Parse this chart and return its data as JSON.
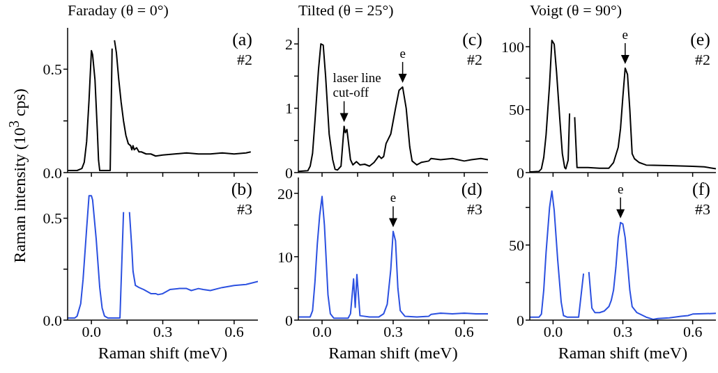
{
  "chart_data": [
    {
      "type": "line",
      "title": "Faraday (θ = 0°)",
      "ylabel": "Raman intensity (10$^{3}$ cps)",
      "tick_labels": "y",
      "xlim": [
        -0.1,
        0.7
      ],
      "xticks": [
        {
          "value": 0,
          "label": null
        },
        {
          "value": 0.15,
          "label": null
        },
        {
          "value": 0.3,
          "label": null
        },
        {
          "value": 0.45,
          "label": null
        },
        {
          "value": 0.6,
          "label": null
        }
      ],
      "ylim": [
        0,
        0.7
      ],
      "yticks": [
        {
          "value": 0,
          "label": "0.0"
        },
        {
          "value": 0.25,
          "label": null
        },
        {
          "value": 0.5,
          "label": "0.5"
        }
      ],
      "annotations": [
        "(a)",
        "#2"
      ],
      "series": [
        {
          "color": "#000000",
          "x": [
            -0.1,
            -0.06,
            -0.04,
            -0.03,
            -0.02,
            -0.01,
            0.0,
            0.005,
            0.015,
            0.025,
            0.03,
            0.035,
            0.079,
            0.087,
            0.092,
            0.097,
            0.105,
            0.115,
            0.125,
            0.135,
            0.145,
            0.155,
            0.165,
            0.17,
            0.175,
            0.18,
            0.19,
            0.2,
            0.21,
            0.23,
            0.25,
            0.27,
            0.3,
            0.35,
            0.4,
            0.45,
            0.5,
            0.55,
            0.6,
            0.65,
            0.67
          ],
          "values": [
            0.01,
            0.01,
            0.02,
            0.05,
            0.15,
            0.35,
            0.59,
            0.57,
            0.45,
            0.2,
            0.06,
            0.01,
            0.01,
            0.6,
            null,
            0.64,
            0.58,
            0.45,
            0.34,
            0.25,
            0.18,
            0.14,
            0.13,
            0.11,
            0.13,
            0.11,
            0.12,
            0.1,
            0.1,
            0.09,
            0.09,
            0.08,
            0.085,
            0.09,
            0.095,
            0.09,
            0.09,
            0.095,
            0.09,
            0.095,
            0.1
          ]
        }
      ]
    },
    {
      "type": "line",
      "title": "Tilted (θ = 25°)",
      "tick_labels": "y",
      "xlim": [
        -0.1,
        0.7
      ],
      "xticks": [
        {
          "value": 0,
          "label": null
        },
        {
          "value": 0.15,
          "label": null
        },
        {
          "value": 0.3,
          "label": null
        },
        {
          "value": 0.45,
          "label": null
        },
        {
          "value": 0.6,
          "label": null
        }
      ],
      "ylim": [
        0,
        2.25
      ],
      "yticks": [
        0,
        {
          "value": 0.5,
          "label": null
        },
        1,
        {
          "value": 1.5,
          "label": null
        },
        2
      ],
      "annotations": [
        "(c)",
        "#2",
        {
          "text": "laser line cut-off",
          "x": 0.093,
          "y": 0.72
        },
        {
          "text": "e",
          "x": 0.34,
          "y": 1.33
        }
      ],
      "series": [
        {
          "color": "#000000",
          "x": [
            -0.1,
            -0.06,
            -0.05,
            -0.04,
            -0.03,
            -0.015,
            -0.005,
            0.005,
            0.015,
            0.03,
            0.045,
            0.055,
            0.065,
            0.08,
            0.093,
            0.098,
            0.105,
            0.12,
            0.13,
            0.145,
            0.16,
            0.18,
            0.2,
            0.22,
            0.24,
            0.25,
            0.26,
            0.27,
            0.29,
            0.31,
            0.325,
            0.34,
            0.355,
            0.37,
            0.38,
            0.4,
            0.42,
            0.45,
            0.46,
            0.5,
            0.55,
            0.6,
            0.63,
            0.67,
            0.7
          ],
          "values": [
            0.02,
            0.03,
            0.1,
            0.3,
            0.8,
            1.6,
            2.0,
            1.98,
            1.5,
            0.6,
            0.2,
            0.05,
            0.04,
            0.1,
            0.72,
            0.62,
            0.67,
            0.2,
            0.12,
            0.17,
            0.12,
            0.13,
            0.1,
            0.16,
            0.26,
            0.22,
            0.25,
            0.45,
            0.6,
            1.0,
            1.28,
            1.33,
            1.0,
            0.4,
            0.18,
            0.12,
            0.16,
            0.18,
            0.22,
            0.2,
            0.22,
            0.18,
            0.2,
            0.22,
            0.2
          ]
        }
      ]
    },
    {
      "type": "line",
      "title": "Voigt (θ = 90°)",
      "tick_labels": "y",
      "xlim": [
        -0.1,
        0.7
      ],
      "xticks": [
        {
          "value": 0,
          "label": null
        },
        {
          "value": 0.15,
          "label": null
        },
        {
          "value": 0.3,
          "label": null
        },
        {
          "value": 0.45,
          "label": null
        },
        {
          "value": 0.6,
          "label": null
        }
      ],
      "ylim": [
        0,
        115
      ],
      "yticks": [
        0,
        {
          "value": 25,
          "label": null
        },
        50,
        {
          "value": 75,
          "label": null
        },
        100
      ],
      "annotations": [
        "(e)",
        "#2",
        {
          "text": "e",
          "x": 0.31,
          "y": 83
        }
      ],
      "series": [
        {
          "color": "#000000",
          "x": [
            -0.1,
            -0.06,
            -0.05,
            -0.04,
            -0.03,
            -0.015,
            -0.005,
            0.005,
            0.015,
            0.03,
            0.04,
            0.05,
            0.055,
            0.065,
            0.071,
            0.082,
            0.093,
            0.103,
            0.15,
            0.2,
            0.24,
            0.26,
            0.28,
            0.29,
            0.3,
            0.31,
            0.32,
            0.33,
            0.34,
            0.35,
            0.37,
            0.4,
            0.5,
            0.6,
            0.65,
            0.7
          ],
          "values": [
            0.5,
            1,
            3,
            12,
            30,
            70,
            105,
            102,
            80,
            40,
            15,
            4,
            3,
            10,
            47,
            null,
            44,
            4,
            4,
            3.5,
            3.5,
            8,
            20,
            35,
            60,
            83,
            78,
            50,
            15,
            11,
            8,
            6,
            5.5,
            5,
            4.5,
            3
          ]
        }
      ]
    },
    {
      "type": "line",
      "xlabel": "Raman shift (meV)",
      "xlim": [
        -0.1,
        0.7
      ],
      "xticks": [
        {
          "value": 0,
          "label": "0.0"
        },
        {
          "value": 0.15,
          "label": null
        },
        {
          "value": 0.3,
          "label": "0.3"
        },
        {
          "value": 0.45,
          "label": null
        },
        {
          "value": 0.6,
          "label": "0.6"
        }
      ],
      "ylim": [
        0,
        0.7
      ],
      "yticks": [
        {
          "value": 0,
          "label": "0.0"
        },
        {
          "value": 0.25,
          "label": null
        },
        {
          "value": 0.5,
          "label": "0.5"
        }
      ],
      "annotations": [
        "(b)",
        "#3"
      ],
      "series": [
        {
          "color": "#2b50e0",
          "x": [
            -0.1,
            -0.07,
            -0.06,
            -0.045,
            -0.035,
            -0.02,
            -0.01,
            0.0,
            0.005,
            0.02,
            0.035,
            0.045,
            0.055,
            0.07,
            0.12,
            0.135,
            0.145,
            0.16,
            0.17,
            0.175,
            0.185,
            0.2,
            0.22,
            0.25,
            0.27,
            0.28,
            0.3,
            0.33,
            0.37,
            0.4,
            0.42,
            0.45,
            0.47,
            0.5,
            0.55,
            0.6,
            0.65,
            0.7
          ],
          "values": [
            0.01,
            0.01,
            0.02,
            0.08,
            0.2,
            0.45,
            0.61,
            0.61,
            0.59,
            0.4,
            0.16,
            0.06,
            0.02,
            0.01,
            0.01,
            0.53,
            null,
            0.53,
            0.35,
            0.24,
            0.17,
            0.16,
            0.15,
            0.13,
            0.13,
            0.125,
            0.13,
            0.15,
            0.155,
            0.155,
            0.145,
            0.155,
            0.15,
            0.145,
            0.16,
            0.17,
            0.175,
            0.19
          ]
        }
      ]
    },
    {
      "type": "line",
      "xlabel": "Raman shift (meV)",
      "xlim": [
        -0.1,
        0.7
      ],
      "xticks": [
        {
          "value": 0,
          "label": "0.0"
        },
        {
          "value": 0.15,
          "label": null
        },
        {
          "value": 0.3,
          "label": "0.3"
        },
        {
          "value": 0.45,
          "label": null
        },
        {
          "value": 0.6,
          "label": "0.6"
        }
      ],
      "ylim": [
        0,
        22.5
      ],
      "yticks": [
        0,
        {
          "value": 5,
          "label": null
        },
        10,
        {
          "value": 15,
          "label": null
        },
        20
      ],
      "annotations": [
        "(d)",
        "#3",
        {
          "text": "e",
          "x": 0.3,
          "y": 14
        }
      ],
      "series": [
        {
          "color": "#2b50e0",
          "x": [
            -0.1,
            -0.05,
            -0.04,
            -0.03,
            -0.02,
            -0.01,
            0.0,
            0.01,
            0.025,
            0.035,
            0.05,
            0.11,
            0.12,
            0.133,
            0.14,
            0.147,
            0.16,
            0.2,
            0.24,
            0.26,
            0.275,
            0.29,
            0.3,
            0.31,
            0.32,
            0.33,
            0.35,
            0.4,
            0.45,
            0.46,
            0.5,
            0.55,
            0.6,
            0.65,
            0.7
          ],
          "values": [
            0.5,
            0.5,
            1.5,
            6,
            12,
            16.5,
            19.5,
            15,
            4,
            1,
            0.3,
            0.3,
            1,
            6.5,
            2,
            7.2,
            0.7,
            0.5,
            0.5,
            1,
            2.5,
            8,
            14,
            12.5,
            5,
            1.5,
            0.6,
            0.5,
            0.6,
            0.9,
            1.1,
            1.0,
            1.1,
            1.0,
            1.0
          ]
        }
      ]
    },
    {
      "type": "line",
      "xlabel": "Raman shift (meV)",
      "xlim": [
        -0.1,
        0.7
      ],
      "xticks": [
        {
          "value": 0,
          "label": "0.0"
        },
        {
          "value": 0.15,
          "label": null
        },
        {
          "value": 0.3,
          "label": "0.3"
        },
        {
          "value": 0.45,
          "label": null
        },
        {
          "value": 0.6,
          "label": "0.6"
        }
      ],
      "ylim": [
        0,
        95
      ],
      "yticks": [
        0,
        {
          "value": 25,
          "label": null
        },
        50,
        {
          "value": 75,
          "label": null
        }
      ],
      "annotations": [
        "(f)",
        "#3",
        {
          "text": "e",
          "x": 0.29,
          "y": 65
        }
      ],
      "series": [
        {
          "color": "#2b50e0",
          "x": [
            -0.1,
            -0.06,
            -0.05,
            -0.04,
            -0.03,
            -0.015,
            -0.005,
            0.005,
            0.02,
            0.035,
            0.045,
            0.06,
            0.11,
            0.131,
            0.142,
            0.154,
            0.167,
            0.18,
            0.2,
            0.22,
            0.24,
            0.25,
            0.26,
            0.27,
            0.28,
            0.29,
            0.3,
            0.31,
            0.32,
            0.33,
            0.34,
            0.36,
            0.4,
            0.43,
            0.45,
            0.5,
            0.55,
            0.58,
            0.6,
            0.7
          ],
          "values": [
            2,
            2,
            4,
            20,
            45,
            75,
            86,
            73,
            40,
            12,
            3,
            2,
            2,
            31,
            null,
            32,
            8,
            5,
            5,
            6,
            9,
            13,
            20,
            35,
            55,
            65,
            64,
            55,
            38,
            20,
            9,
            5,
            2,
            0.5,
            1,
            1.5,
            2.5,
            3,
            4,
            4.5
          ]
        }
      ]
    }
  ]
}
